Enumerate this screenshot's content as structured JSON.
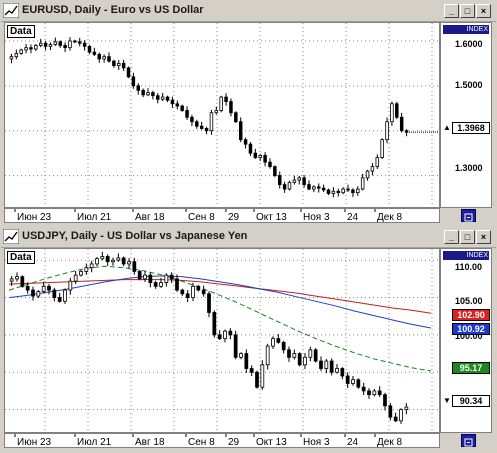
{
  "windows": [
    {
      "title": "EURUSD, Daily - Euro vs US Dollar",
      "data_label": "Data",
      "index_label": "INDEX",
      "y_ticks": [
        "1.6000",
        "1.5000",
        "1.4000",
        "1.3000"
      ],
      "price_box": {
        "value": "1.3968",
        "color": "#ffffff",
        "text_color": "#000000"
      },
      "x_ticks": [
        "Июн 23",
        "Июл 21",
        "Авг 18",
        "Сен 8",
        "29",
        "Окт 13",
        "Ноя 3",
        "24",
        "Дек 8"
      ]
    },
    {
      "title": "USDJPY, Daily - US Dollar vs Japanese Yen",
      "data_label": "Data",
      "index_label": "INDEX",
      "y_ticks": [
        "110.00",
        "105.00",
        "100.00",
        "95.00"
      ],
      "price_boxes": [
        {
          "value": "102.90",
          "color": "#e02020",
          "text_color": "#ffffff"
        },
        {
          "value": "100.92",
          "color": "#1a3ad0",
          "text_color": "#ffffff"
        },
        {
          "value": "95.17",
          "color": "#1a8a1a",
          "text_color": "#ffffff"
        },
        {
          "value": "90.34",
          "color": "#ffffff",
          "text_color": "#000000"
        }
      ],
      "x_ticks": [
        "Июн 23",
        "Июл 21",
        "Авг 18",
        "Сен 8",
        "29",
        "Окт 13",
        "Ноя 3",
        "24",
        "Дек 8"
      ],
      "moving_average_colors": {
        "ma1": "#c02020",
        "ma2": "#2040c0",
        "ma3": "#208020"
      }
    }
  ],
  "chart_data": [
    {
      "type": "candlestick",
      "title": "EURUSD, Daily - Euro vs US Dollar",
      "ylim": [
        1.23,
        1.64
      ],
      "close": [
        1.565,
        1.572,
        1.58,
        1.585,
        1.582,
        1.59,
        1.595,
        1.588,
        1.592,
        1.598,
        1.59,
        1.585,
        1.6,
        1.598,
        1.595,
        1.588,
        1.575,
        1.57,
        1.56,
        1.565,
        1.555,
        1.545,
        1.55,
        1.54,
        1.52,
        1.5,
        1.49,
        1.48,
        1.485,
        1.478,
        1.47,
        1.475,
        1.468,
        1.46,
        1.455,
        1.445,
        1.43,
        1.42,
        1.41,
        1.405,
        1.4,
        1.44,
        1.445,
        1.475,
        1.465,
        1.44,
        1.42,
        1.38,
        1.37,
        1.35,
        1.34,
        1.345,
        1.33,
        1.32,
        1.3,
        1.28,
        1.27,
        1.285,
        1.29,
        1.295,
        1.28,
        1.27,
        1.275,
        1.272,
        1.268,
        1.26,
        1.265,
        1.262,
        1.27,
        1.268,
        1.262,
        1.27,
        1.295,
        1.31,
        1.32,
        1.34,
        1.38,
        1.42,
        1.46,
        1.43,
        1.4,
        1.397
      ],
      "x_tick_labels": [
        "Июн 23",
        "Июл 21",
        "Авг 18",
        "Сен 8",
        "29",
        "Окт 13",
        "Ноя 3",
        "24",
        "Дек 8"
      ]
    },
    {
      "type": "candlestick",
      "title": "USDJPY, Daily - US Dollar vs Japanese Yen",
      "ylim": [
        87.0,
        111.5
      ],
      "close": [
        107.5,
        107.8,
        106.5,
        106.0,
        105.2,
        105.8,
        106.5,
        106.0,
        105.0,
        104.5,
        106.0,
        107.2,
        108.0,
        108.5,
        109.0,
        109.5,
        110.2,
        110.5,
        109.8,
        110.0,
        110.3,
        109.5,
        109.8,
        108.5,
        107.5,
        108.0,
        107.0,
        106.5,
        107.0,
        108.0,
        107.5,
        106.0,
        105.5,
        105.0,
        106.5,
        106.0,
        105.5,
        103.0,
        100.0,
        99.5,
        100.5,
        100.0,
        97.0,
        97.5,
        95.5,
        95.0,
        93.0,
        96.0,
        98.5,
        99.5,
        99.0,
        98.0,
        97.0,
        97.5,
        96.0,
        97.0,
        98.0,
        96.5,
        95.5,
        96.5,
        95.0,
        95.5,
        94.5,
        93.5,
        94.0,
        93.0,
        92.5,
        92.0,
        92.5,
        92.0,
        90.5,
        89.0,
        88.5,
        90.0,
        90.34
      ],
      "series": [
        {
          "name": "",
          "color": "#c02020",
          "values": [
            106.8,
            106.9,
            107.0,
            107.1,
            107.2,
            107.3,
            107.4,
            107.4,
            107.4,
            107.3,
            107.1,
            106.8,
            106.5,
            106.2,
            105.9,
            105.6,
            105.2,
            104.8,
            104.4,
            104.0,
            103.6,
            103.3,
            102.9
          ]
        },
        {
          "name": "",
          "color": "#2040c0",
          "values": [
            105.0,
            105.3,
            105.7,
            106.1,
            106.6,
            107.1,
            107.5,
            107.8,
            107.9,
            107.8,
            107.5,
            107.1,
            106.7,
            106.2,
            105.7,
            105.1,
            104.5,
            103.9,
            103.2,
            102.6,
            102.0,
            101.4,
            100.92
          ]
        },
        {
          "name": "",
          "color": "#208020",
          "values": [
            106.0,
            106.8,
            107.6,
            108.3,
            108.9,
            109.2,
            109.0,
            108.6,
            108.0,
            107.2,
            106.3,
            105.3,
            104.2,
            103.0,
            101.8,
            100.6,
            99.5,
            98.5,
            97.6,
            96.8,
            96.2,
            95.6,
            95.17
          ]
        }
      ],
      "x_tick_labels": [
        "Июн 23",
        "Июл 21",
        "Авг 18",
        "Сен 8",
        "29",
        "Окт 13",
        "Ноя 3",
        "24",
        "Дек 8"
      ]
    }
  ]
}
